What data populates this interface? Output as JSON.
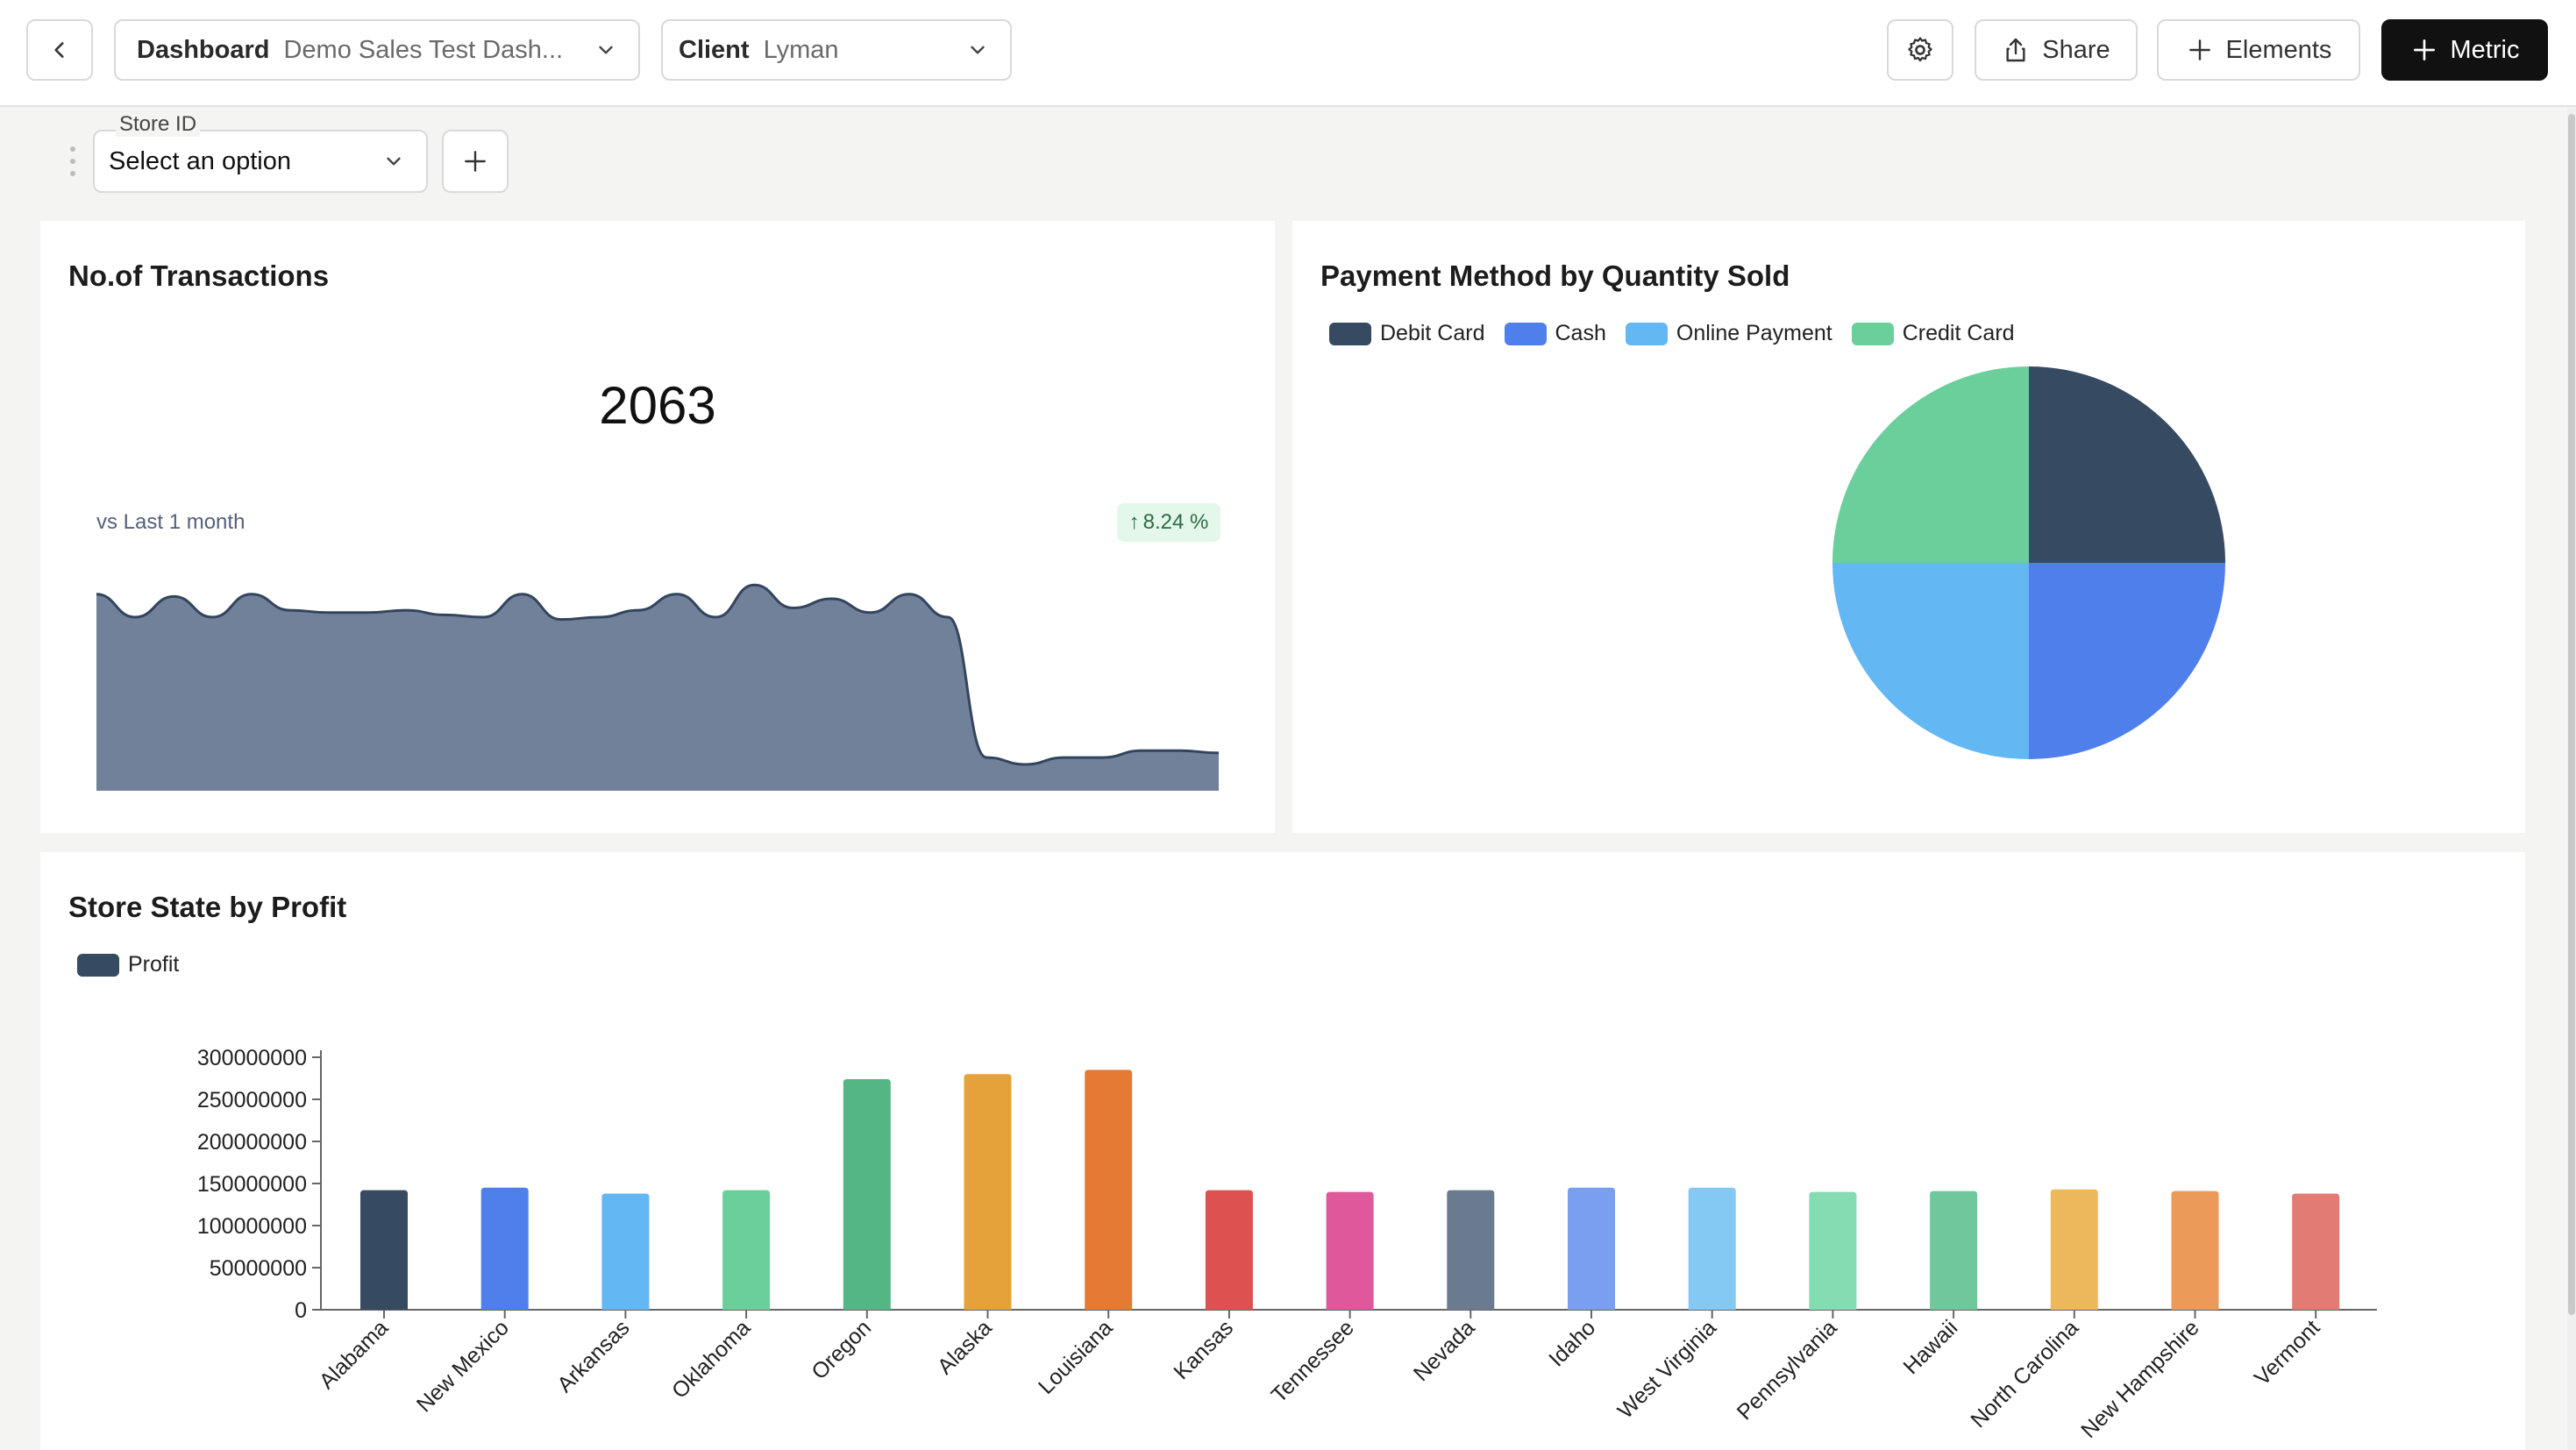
{
  "header": {
    "dashboard_key": "Dashboard",
    "dashboard_value": "Demo Sales Test Dash...",
    "client_key": "Client",
    "client_value": "Lyman",
    "share_label": "Share",
    "elements_label": "Elements",
    "metric_label": "Metric"
  },
  "filters": {
    "store_label": "Store ID",
    "store_placeholder": "Select an option"
  },
  "transactions": {
    "title": "No.of Transactions",
    "value": "2063",
    "comparison": "vs Last 1 month",
    "change": "8.24 %",
    "sparkline_color": "#72819a"
  },
  "payment": {
    "title": "Payment Method by Quantity Sold",
    "legend": [
      {
        "label": "Debit Card",
        "color": "#364a62"
      },
      {
        "label": "Cash",
        "color": "#4f7fea"
      },
      {
        "label": "Online Payment",
        "color": "#63b7f2"
      },
      {
        "label": "Credit Card",
        "color": "#6bcf9b"
      }
    ]
  },
  "profit": {
    "title": "Store State by Profit",
    "legend_label": "Profit",
    "legend_color": "#364a62"
  },
  "chart_data": [
    {
      "type": "area",
      "title": "No.of Transactions",
      "x": [
        1,
        2,
        3,
        4,
        5,
        6,
        7,
        8,
        9,
        10,
        11,
        12,
        13,
        14,
        15,
        16,
        17,
        18,
        19,
        20,
        21,
        22,
        23,
        24,
        25,
        26,
        27,
        28,
        29,
        30
      ],
      "values": [
        74,
        64,
        73,
        64,
        74,
        67,
        66,
        66,
        67,
        65,
        64,
        74,
        63,
        64,
        67,
        74,
        64,
        78,
        68,
        72,
        66,
        74,
        64,
        3,
        0,
        3,
        3,
        6,
        6,
        5
      ]
    },
    {
      "type": "pie",
      "title": "Payment Method by Quantity Sold",
      "labels": [
        "Debit Card",
        "Cash",
        "Online Payment",
        "Credit Card"
      ],
      "values": [
        25,
        25,
        25,
        25
      ],
      "legend": "top-left"
    },
    {
      "type": "bar",
      "title": "Store State by Profit",
      "categories": [
        "Alabama",
        "New Mexico",
        "Arkansas",
        "Oklahoma",
        "Oregon",
        "Alaska",
        "Louisiana",
        "Kansas",
        "Tennessee",
        "Nevada",
        "Idaho",
        "West Virginia",
        "Pennsylvania",
        "Hawaii",
        "North Carolina",
        "New Hampshire",
        "Vermont"
      ],
      "series": [
        {
          "name": "Profit",
          "values": [
            142000000,
            145000000,
            138000000,
            142000000,
            274000000,
            280000000,
            285000000,
            142000000,
            140000000,
            142000000,
            145000000,
            145000000,
            140000000,
            141000000,
            143000000,
            141000000,
            138000000
          ]
        }
      ],
      "colors": [
        "#364a62",
        "#4f7fea",
        "#63b7f2",
        "#6bcf9b",
        "#54b684",
        "#e5a23a",
        "#e57a35",
        "#de5151",
        "#df589b",
        "#6a7b90",
        "#7b9ff0",
        "#83c9f4",
        "#84dcb2",
        "#6ec89b",
        "#ecb85b",
        "#eb9a5a",
        "#e27b74"
      ],
      "yticks": [
        "300000000",
        "250000000",
        "200000000",
        "150000000",
        "100000000",
        "50000000",
        "0"
      ],
      "ylim": [
        0,
        300000000
      ],
      "legend": "top-left"
    }
  ]
}
